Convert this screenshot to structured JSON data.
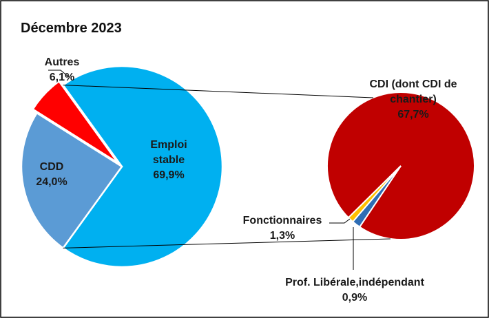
{
  "chart_data": {
    "type": "pie-of-pie",
    "title": "Décembre 2023",
    "categories": [
      "Emploi stable",
      "CDD",
      "Autres"
    ],
    "values": [
      69.9,
      24.0,
      6.1
    ],
    "value_labels": [
      "69,9%",
      "24,0%",
      "6,1%"
    ],
    "colors": [
      "#00b0f0",
      "#5b9bd5",
      "#ff0000"
    ],
    "secondary": {
      "categories": [
        "CDI (dont CDI de chantier)",
        "Fonctionnaires",
        "Prof. Libérale,indépendant"
      ],
      "values": [
        67.7,
        1.3,
        0.9
      ],
      "value_labels": [
        "67,7%",
        "1,3%",
        "0,9%"
      ],
      "colors": [
        "#c00000",
        "#2e6db4",
        "#ffc000"
      ]
    }
  }
}
